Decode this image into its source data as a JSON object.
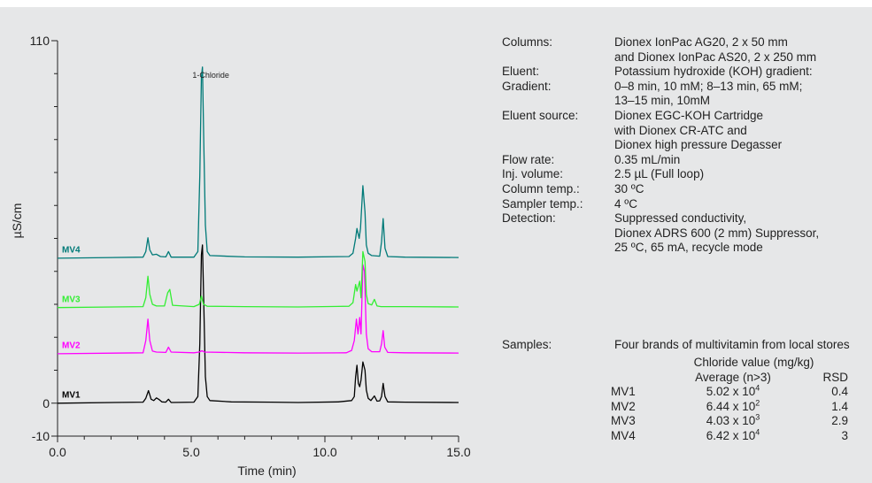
{
  "chart_data": {
    "type": "line",
    "xlabel": "Time (min)",
    "ylabel": "µS/cm",
    "xlim": [
      0,
      15
    ],
    "ylim": [
      -10,
      110
    ],
    "x_ticks": [
      "0.0",
      "5.0",
      "10.0",
      "15.0"
    ],
    "y_ticks": [
      "-10",
      "0",
      "110"
    ],
    "annotations": [
      {
        "text": "1-Chloride",
        "x": 5.4
      }
    ],
    "series": [
      {
        "name": "MV1",
        "color": "#000000",
        "offset": 0,
        "points": [
          [
            0,
            0
          ],
          [
            3.2,
            0.3
          ],
          [
            3.3,
            1.5
          ],
          [
            3.4,
            3.8
          ],
          [
            3.5,
            1.2
          ],
          [
            3.6,
            0.8
          ],
          [
            3.7,
            1.6
          ],
          [
            3.8,
            1.1
          ],
          [
            3.9,
            0.4
          ],
          [
            4.05,
            0.3
          ],
          [
            4.15,
            1.2
          ],
          [
            4.25,
            0.2
          ],
          [
            5.1,
            0.3
          ],
          [
            5.25,
            2
          ],
          [
            5.32,
            18
          ],
          [
            5.38,
            45
          ],
          [
            5.42,
            48
          ],
          [
            5.47,
            30
          ],
          [
            5.53,
            8
          ],
          [
            5.6,
            2
          ],
          [
            5.7,
            0.8
          ],
          [
            6.5,
            0.4
          ],
          [
            8,
            0.3
          ],
          [
            9,
            0.2
          ],
          [
            10.5,
            0.4
          ],
          [
            11.0,
            0.8
          ],
          [
            11.1,
            2
          ],
          [
            11.15,
            8
          ],
          [
            11.2,
            11.5
          ],
          [
            11.25,
            6
          ],
          [
            11.3,
            5
          ],
          [
            11.35,
            7
          ],
          [
            11.42,
            12.5
          ],
          [
            11.5,
            10
          ],
          [
            11.55,
            4
          ],
          [
            11.62,
            1.5
          ],
          [
            11.72,
            0.8
          ],
          [
            11.85,
            2.2
          ],
          [
            11.95,
            0.6
          ],
          [
            12.05,
            0.7
          ],
          [
            12.12,
            2
          ],
          [
            12.18,
            6
          ],
          [
            12.25,
            2
          ],
          [
            12.35,
            0.4
          ],
          [
            13,
            0.3
          ],
          [
            15,
            0.2
          ]
        ]
      },
      {
        "name": "MV2",
        "color": "#ff00ff",
        "offset": 15,
        "points": [
          [
            0,
            0
          ],
          [
            3.2,
            0.3
          ],
          [
            3.3,
            4
          ],
          [
            3.38,
            10.5
          ],
          [
            3.45,
            4
          ],
          [
            3.55,
            0.8
          ],
          [
            3.7,
            0.5
          ],
          [
            4.05,
            0.4
          ],
          [
            4.15,
            2
          ],
          [
            4.25,
            0.5
          ],
          [
            5.1,
            0.3
          ],
          [
            5.3,
            0.5
          ],
          [
            5.4,
            0.9
          ],
          [
            5.5,
            0.5
          ],
          [
            7,
            0.3
          ],
          [
            9,
            0.2
          ],
          [
            10.8,
            0.3
          ],
          [
            11.0,
            1
          ],
          [
            11.1,
            4
          ],
          [
            11.18,
            10.5
          ],
          [
            11.24,
            6
          ],
          [
            11.3,
            11
          ],
          [
            11.35,
            6
          ],
          [
            11.42,
            27
          ],
          [
            11.48,
            25
          ],
          [
            11.55,
            6
          ],
          [
            11.62,
            1.5
          ],
          [
            11.75,
            0.6
          ],
          [
            12.05,
            0.6
          ],
          [
            12.12,
            3
          ],
          [
            12.18,
            7
          ],
          [
            12.24,
            2
          ],
          [
            12.35,
            0.4
          ],
          [
            13,
            0.3
          ],
          [
            15,
            0.2
          ]
        ]
      },
      {
        "name": "MV3",
        "color": "#33ee33",
        "offset": 29,
        "points": [
          [
            0,
            0
          ],
          [
            3.2,
            0.3
          ],
          [
            3.3,
            3
          ],
          [
            3.38,
            9.5
          ],
          [
            3.45,
            4
          ],
          [
            3.55,
            1
          ],
          [
            3.7,
            0.5
          ],
          [
            4.0,
            0.5
          ],
          [
            4.12,
            4.5
          ],
          [
            4.2,
            5.5
          ],
          [
            4.3,
            0.7
          ],
          [
            5.1,
            0.3
          ],
          [
            5.3,
            1
          ],
          [
            5.38,
            3.5
          ],
          [
            5.46,
            1
          ],
          [
            5.6,
            0.4
          ],
          [
            7,
            0.3
          ],
          [
            9,
            0.2
          ],
          [
            10.9,
            0.4
          ],
          [
            11.05,
            1.5
          ],
          [
            11.15,
            7
          ],
          [
            11.2,
            5
          ],
          [
            11.3,
            8
          ],
          [
            11.35,
            3
          ],
          [
            11.42,
            17
          ],
          [
            11.5,
            14
          ],
          [
            11.55,
            4
          ],
          [
            11.62,
            1.2
          ],
          [
            11.75,
            0.8
          ],
          [
            11.85,
            2.5
          ],
          [
            11.95,
            0.5
          ],
          [
            12.1,
            0.3
          ],
          [
            13,
            0.3
          ],
          [
            15,
            0.2
          ]
        ]
      },
      {
        "name": "MV4",
        "color": "#007a78",
        "offset": 44,
        "points": [
          [
            0,
            0
          ],
          [
            3.2,
            0.3
          ],
          [
            3.3,
            2
          ],
          [
            3.38,
            6.2
          ],
          [
            3.45,
            2.5
          ],
          [
            3.55,
            1
          ],
          [
            3.7,
            1.2
          ],
          [
            3.85,
            0.5
          ],
          [
            4.05,
            0.4
          ],
          [
            4.15,
            2
          ],
          [
            4.25,
            0.3
          ],
          [
            5.1,
            0.3
          ],
          [
            5.25,
            2
          ],
          [
            5.32,
            25
          ],
          [
            5.38,
            55
          ],
          [
            5.42,
            58
          ],
          [
            5.47,
            35
          ],
          [
            5.53,
            10
          ],
          [
            5.6,
            2
          ],
          [
            5.7,
            0.8
          ],
          [
            7,
            0.4
          ],
          [
            9,
            0.3
          ],
          [
            10.9,
            0.5
          ],
          [
            11.05,
            1.5
          ],
          [
            11.15,
            6
          ],
          [
            11.2,
            9
          ],
          [
            11.28,
            6
          ],
          [
            11.33,
            9
          ],
          [
            11.42,
            22
          ],
          [
            11.5,
            14
          ],
          [
            11.55,
            4
          ],
          [
            11.62,
            1.5
          ],
          [
            11.75,
            0.8
          ],
          [
            12.05,
            0.6
          ],
          [
            12.12,
            5
          ],
          [
            12.18,
            12
          ],
          [
            12.25,
            3
          ],
          [
            12.35,
            0.5
          ],
          [
            13,
            0.3
          ],
          [
            15,
            0.2
          ]
        ]
      }
    ]
  },
  "conditions": [
    {
      "label": "Columns:",
      "lines": [
        "Dionex IonPac AG20, 2 x 50 mm",
        "and Dionex IonPac AS20, 2 x 250 mm"
      ]
    },
    {
      "label": "Eluent:",
      "lines": [
        "Potassium hydroxide (KOH) gradient:"
      ]
    },
    {
      "label": "Gradient:",
      "lines": [
        "0–8 min, 10 mM; 8–13 min, 65 mM;",
        "13–15 min, 10mM"
      ]
    },
    {
      "label": "Eluent source:",
      "lines": [
        "Dionex EGC-KOH Cartridge",
        "with Dionex CR-ATC and",
        "Dionex high pressure Degasser"
      ]
    },
    {
      "label": "Flow rate:",
      "lines": [
        "0.35 mL/min"
      ]
    },
    {
      "label": "Inj. volume:",
      "lines": [
        "2.5 µL (Full loop)"
      ]
    },
    {
      "label": "Column temp.:",
      "lines": [
        "30 ºC"
      ]
    },
    {
      "label": "Sampler temp.:",
      "lines": [
        "4 ºC"
      ]
    },
    {
      "label": "Detection:",
      "lines": [
        "Suppressed conductivity,",
        "Dionex ADRS 600 (2 mm) Suppressor,",
        "25 ºC, 65 mA, recycle mode"
      ]
    }
  ],
  "samples": {
    "label": "Samples:",
    "value": "Four brands of multivitamin from local stores",
    "table": {
      "header_main": "Chloride value (mg/kg)",
      "header_avg": "Average (n>3)",
      "header_rsd": "RSD",
      "rows": [
        {
          "brand": "MV1",
          "mantissa": "5.02 x 10",
          "exp": "4",
          "rsd": "0.4"
        },
        {
          "brand": "MV2",
          "mantissa": "6.44 x 10",
          "exp": "2",
          "rsd": "1.4"
        },
        {
          "brand": "MV3",
          "mantissa": "4.03 x 10",
          "exp": "3",
          "rsd": "2.9"
        },
        {
          "brand": "MV4",
          "mantissa": "6.42 x 10",
          "exp": "4",
          "rsd": "3"
        }
      ]
    }
  }
}
